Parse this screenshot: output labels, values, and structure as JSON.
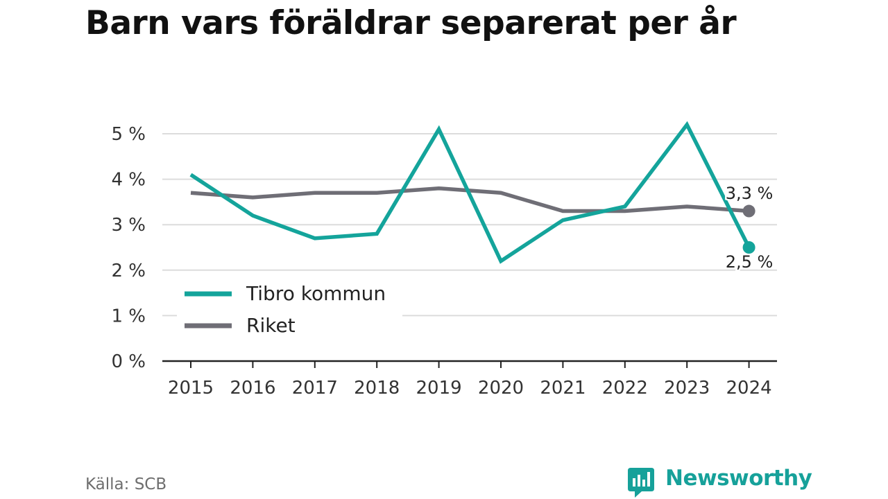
{
  "title": "Barn vars föräldrar separerat per år",
  "source": "Källa: SCB",
  "brand": {
    "name": "Newsworthy",
    "icon": "newsworthy-logo-icon"
  },
  "colors": {
    "tibro": "#14a49b",
    "riket": "#6f6e76",
    "grid": "#dcdcdc",
    "axis": "#222222",
    "brand": "#16a19a"
  },
  "chart_data": {
    "type": "line",
    "categories": [
      "2015",
      "2016",
      "2017",
      "2018",
      "2019",
      "2020",
      "2021",
      "2022",
      "2023",
      "2024"
    ],
    "series": [
      {
        "name": "Tibro kommun",
        "values": [
          4.1,
          3.2,
          2.7,
          2.8,
          5.1,
          2.2,
          3.1,
          3.4,
          5.2,
          2.5
        ],
        "end_label": "2,5 %"
      },
      {
        "name": "Riket",
        "values": [
          3.7,
          3.6,
          3.7,
          3.7,
          3.8,
          3.7,
          3.3,
          3.3,
          3.4,
          3.3
        ],
        "end_label": "3,3 %"
      }
    ],
    "yticks": [
      {
        "value": 0,
        "label": "0 %"
      },
      {
        "value": 1,
        "label": "1 %"
      },
      {
        "value": 2,
        "label": "2 %"
      },
      {
        "value": 3,
        "label": "3 %"
      },
      {
        "value": 4,
        "label": "4 %"
      },
      {
        "value": 5,
        "label": "5 %"
      }
    ],
    "ylim": [
      0,
      5
    ],
    "grid": true,
    "legend_position": "bottom-left"
  }
}
